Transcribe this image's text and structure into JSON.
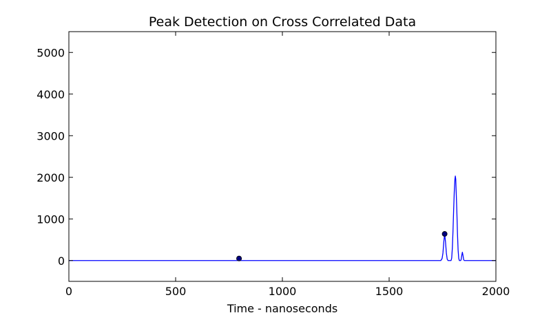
{
  "chart_data": {
    "type": "line",
    "title": "Peak Detection on Cross Correlated Data",
    "xlabel": "Time - nanoseconds",
    "ylabel": "",
    "xlim": [
      0,
      2000
    ],
    "ylim": [
      -500,
      5500
    ],
    "xticks": [
      0,
      500,
      1000,
      1500,
      2000
    ],
    "xtick_labels": [
      "0",
      "500",
      "1000",
      "1500",
      "2000"
    ],
    "yticks": [
      0,
      1000,
      2000,
      3000,
      4000,
      5000
    ],
    "ytick_labels": [
      "0",
      "1000",
      "2000",
      "3000",
      "4000",
      "5000"
    ],
    "grid": false,
    "series": [
      {
        "color": "#0000ff",
        "x": [
          0,
          1742,
          1748,
          1752,
          1756,
          1760,
          1764,
          1768,
          1772,
          1776,
          1780,
          1790,
          1793,
          1796,
          1799,
          1802,
          1805,
          1808,
          1810,
          1812,
          1814,
          1817,
          1820,
          1823,
          1826,
          1829,
          1832,
          1835,
          1837,
          1840,
          1843,
          1846,
          1849,
          1852,
          2000
        ],
        "y": [
          0,
          0,
          50,
          180,
          450,
          640,
          450,
          180,
          30,
          0,
          0,
          0,
          60,
          300,
          700,
          1200,
          1650,
          1950,
          2030,
          1950,
          1650,
          1200,
          650,
          250,
          50,
          0,
          0,
          0,
          20,
          120,
          200,
          120,
          20,
          0,
          0
        ]
      }
    ],
    "peaks": {
      "color": "#00007f",
      "x": [
        797,
        1760
      ],
      "y": [
        50,
        640
      ]
    }
  }
}
